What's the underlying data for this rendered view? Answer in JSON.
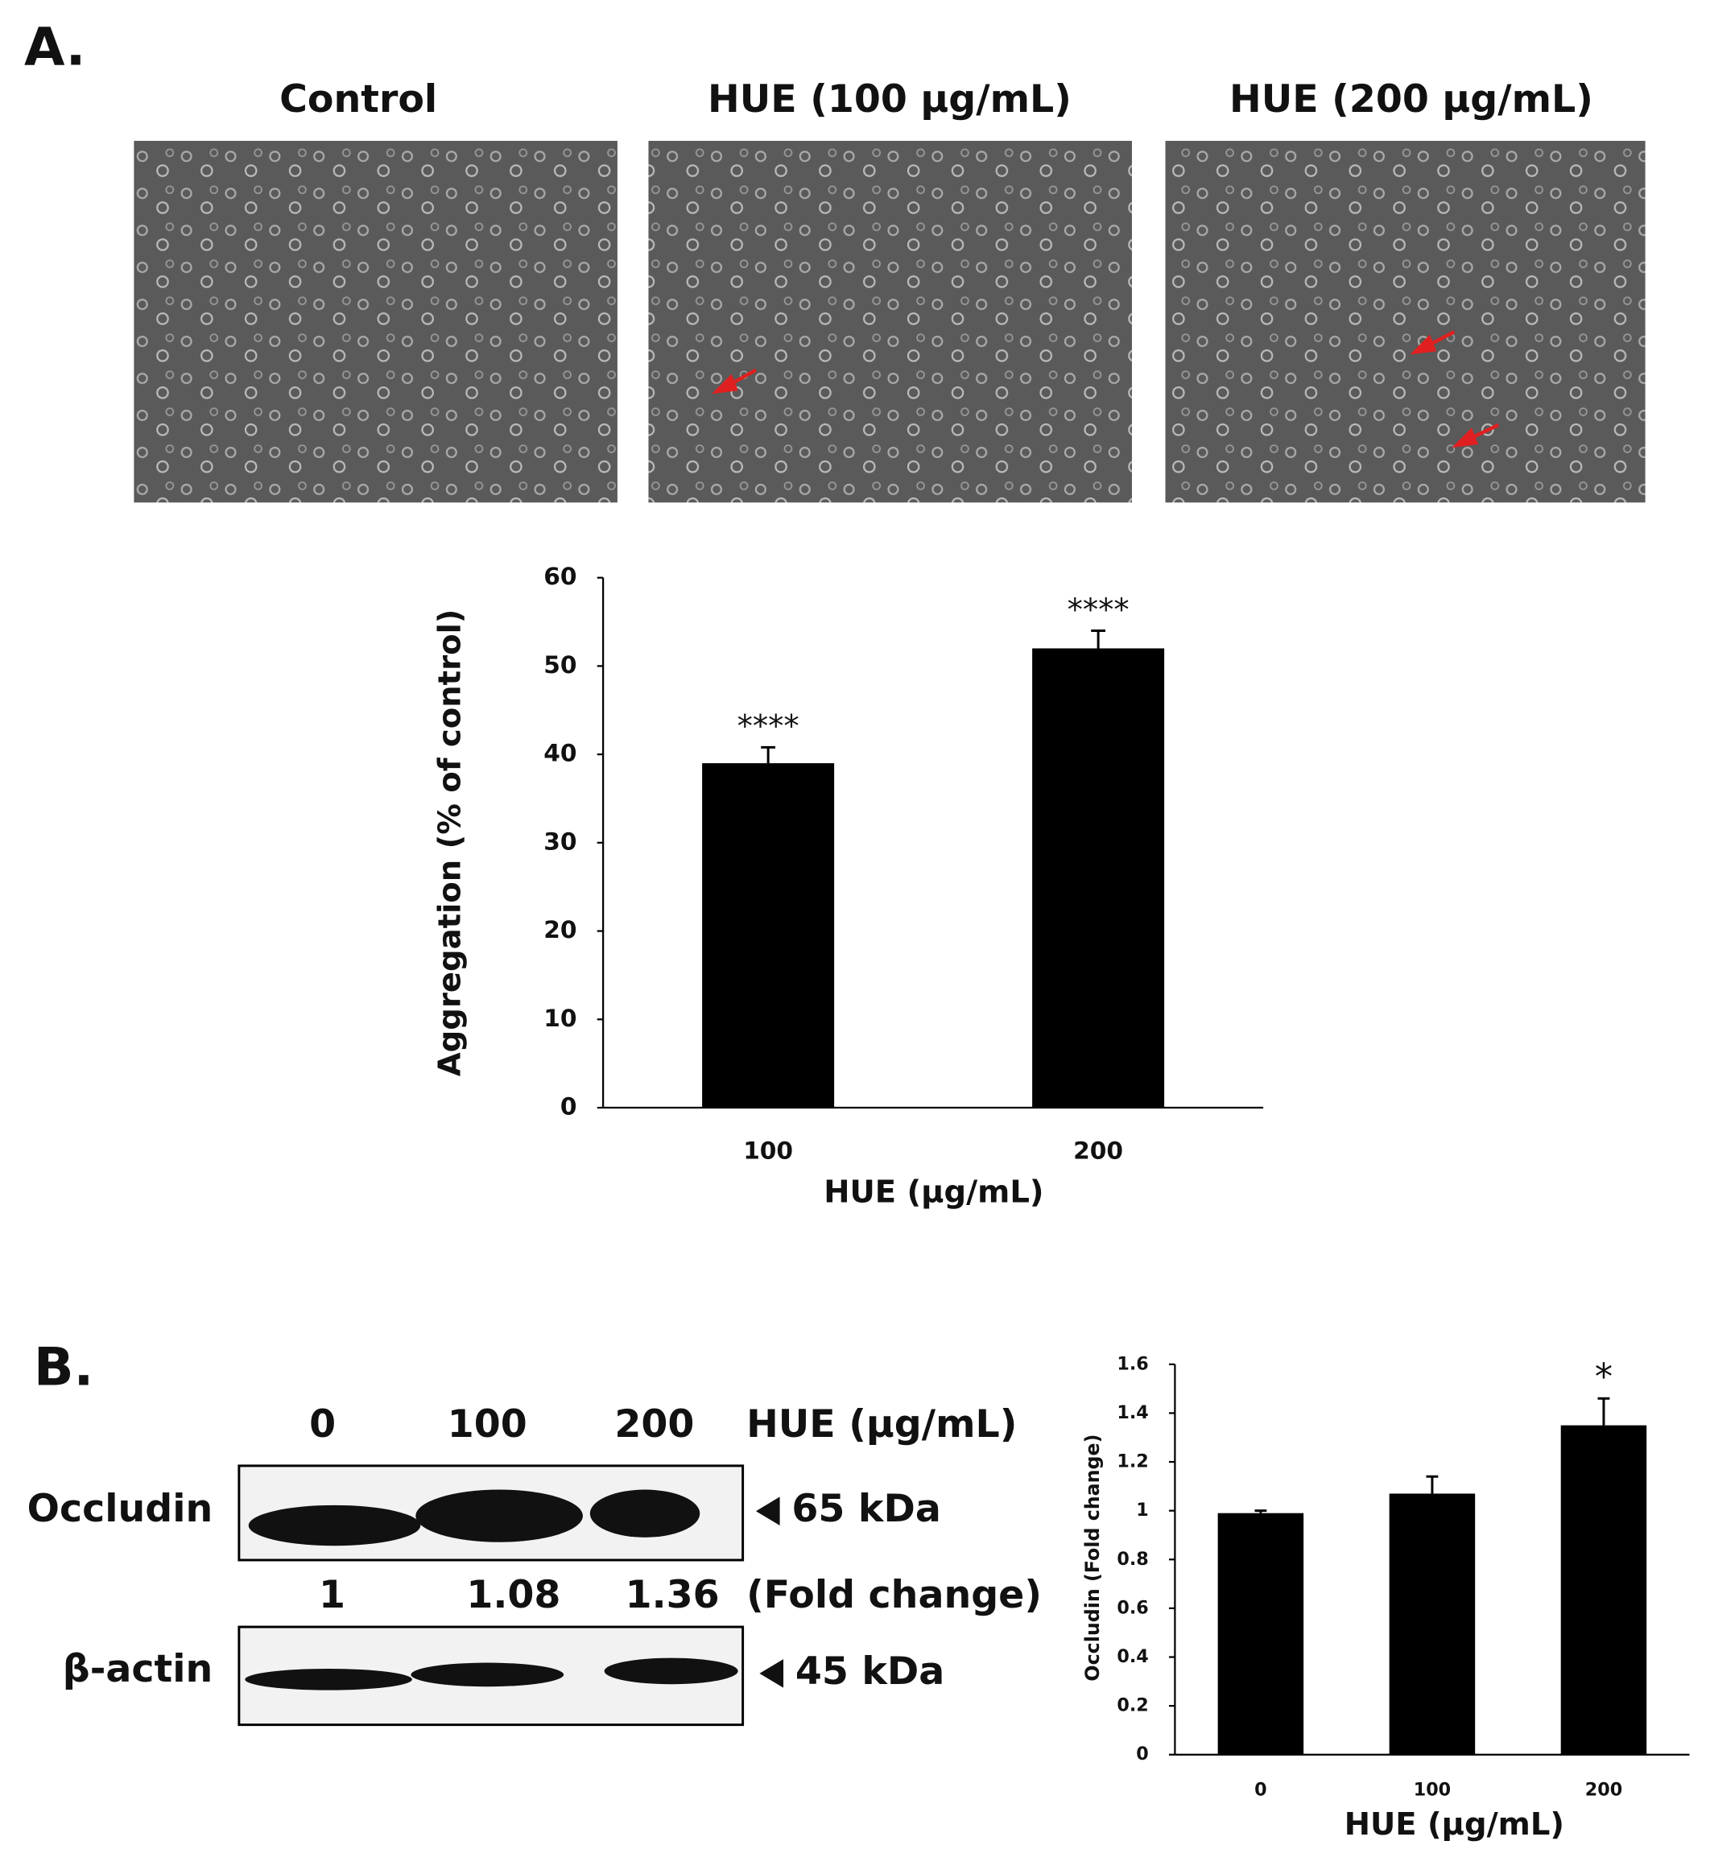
{
  "panels": {
    "a": "A.",
    "b": "B."
  },
  "micrographs": {
    "titles": [
      "Control",
      "HUE (100 μg/mL)",
      "HUE (200 μg/mL)"
    ]
  },
  "blot": {
    "lanes": [
      "0",
      "100",
      "200"
    ],
    "lane_unit": "HUE (μg/mL)",
    "rows": [
      "Occludin",
      "β-actin"
    ],
    "sizes": [
      "65 kDa",
      "45 kDa"
    ],
    "fold_change": [
      1,
      1.08,
      1.36
    ],
    "fold_change_label": "(Fold change)"
  },
  "chart_data": [
    {
      "type": "bar",
      "categories": [
        "100",
        "200"
      ],
      "values": [
        39,
        52
      ],
      "errors": [
        1.8,
        2
      ],
      "annotations": [
        "****",
        "****"
      ],
      "color": "#000000",
      "x_label": "HUE (μg/mL)",
      "y_label": "Aggregation (% of control)",
      "ylim": [
        0,
        60
      ],
      "yticks": [
        0,
        10,
        20,
        30,
        40,
        50,
        60
      ],
      "grid": false
    },
    {
      "type": "bar",
      "categories": [
        "0",
        "100",
        "200"
      ],
      "values": [
        0.99,
        1.07,
        1.35
      ],
      "errors": [
        0.01,
        0.07,
        0.11
      ],
      "annotations": [
        null,
        null,
        "*"
      ],
      "color": "#000000",
      "x_label": "HUE (μg/mL)",
      "y_label": "Occludin  (Fold change)",
      "ylim": [
        0,
        1.6
      ],
      "yticks": [
        0,
        0.2,
        0.4,
        0.6,
        0.8,
        1,
        1.2,
        1.4,
        1.6
      ],
      "grid": false
    }
  ]
}
